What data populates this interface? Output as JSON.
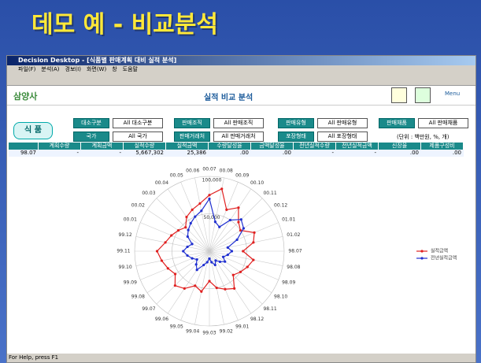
{
  "slide_title": "데모 예 - 비교분석",
  "window": {
    "title": "Decision Desktop - [식품별 판매계획 대비 실적 분석]",
    "menu": [
      "파일(F)",
      "분석(A)",
      "경보(I)",
      "화면(W)",
      "창",
      "도움말"
    ],
    "status": "For Help, press F1"
  },
  "header": {
    "logo": "삼양사",
    "title": "실적 비교 분석",
    "menu_button": "Menu"
  },
  "filters": {
    "main": "식 품",
    "items": [
      {
        "label": "대소구분",
        "value": "All 대소구분"
      },
      {
        "label": "판매조직",
        "value": "All 판매조직"
      },
      {
        "label": "판매유형",
        "value": "All 판매유형"
      },
      {
        "label": "판매채품",
        "value": "All 판매채품"
      },
      {
        "label": "국가",
        "value": "All 국가"
      },
      {
        "label": "판매거래처",
        "value": "All 판매거래처"
      },
      {
        "label": "포장형태",
        "value": "All 포장형태"
      }
    ],
    "unit": "(단위 : 백만원, %, 개)"
  },
  "table": {
    "header": [
      "계획수량",
      "계획금액",
      "실적수량",
      "실적금액",
      "수량달성율",
      "금액달성율",
      "전년실적수량",
      "전년실적금액",
      "신장율",
      "제품구성비"
    ],
    "row": [
      "98.07",
      "-",
      "-",
      "5,667,302",
      "25,386",
      ".00",
      ".00",
      "-",
      "-",
      ".00",
      ".00"
    ]
  },
  "chart_data": {
    "type": "radar",
    "categories": [
      "00.07",
      "00.08",
      "00.09",
      "00.10",
      "00.11",
      "00.12",
      "01.01",
      "01.02",
      "98.07",
      "98.08",
      "98.09",
      "98.10",
      "98.11",
      "98.12",
      "99.01",
      "99.02",
      "99.03",
      "99.04",
      "99.05",
      "99.06",
      "99.07",
      "99.08",
      "99.09",
      "99.10",
      "99.11",
      "99.12",
      "00.01",
      "00.02",
      "00.03",
      "00.04",
      "00.05",
      "00.06"
    ],
    "series": [
      {
        "name": "실적금액",
        "color": "#e02020",
        "values": [
          75000,
          85000,
          60000,
          70000,
          55000,
          50000,
          65000,
          60000,
          45000,
          60000,
          55000,
          50000,
          45000,
          60000,
          55000,
          50000,
          40000,
          55000,
          50000,
          60000,
          65000,
          55000,
          60000,
          65000,
          70000,
          60000,
          55000,
          50000,
          45000,
          55000,
          60000,
          65000
        ]
      },
      {
        "name": "전년실적금액",
        "color": "#2030d0",
        "values": [
          70000,
          40000,
          35000,
          50000,
          60000,
          55000,
          40000,
          25000,
          30000,
          25000,
          20000,
          25000,
          20000,
          15000,
          20000,
          15000,
          10000,
          15000,
          20000,
          30000,
          25000,
          20000,
          25000,
          30000,
          35000,
          30000,
          25000,
          35000,
          40000,
          45000,
          50000,
          55000
        ]
      }
    ],
    "rlim": [
      0,
      100000
    ],
    "rticks": [
      {
        "value": 50000,
        "label": "50,000"
      },
      {
        "value": 100000,
        "label": "100,000"
      }
    ],
    "legend": "right"
  }
}
